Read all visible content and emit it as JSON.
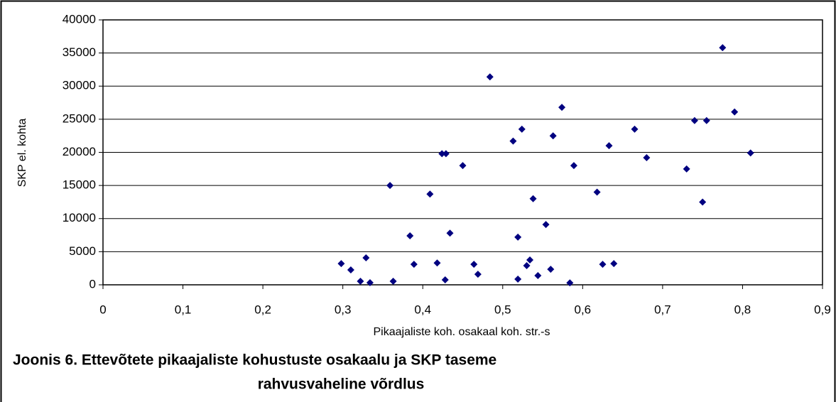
{
  "chart_data": {
    "type": "scatter",
    "x_label": "Pikaajaliste koh. osakaal koh. str.-s",
    "y_label": "SKP el. kohta",
    "caption": [
      "Joonis 6. Ettevõtete pikaajaliste kohustuste osakaalu ja SKP taseme",
      "rahvusvaheline võrdlus"
    ],
    "color": "#000080",
    "grid": true,
    "x": [
      0.298,
      0.31,
      0.322,
      0.329,
      0.334,
      0.359,
      0.363,
      0.384,
      0.389,
      0.409,
      0.418,
      0.424,
      0.428,
      0.429,
      0.434,
      0.45,
      0.464,
      0.469,
      0.484,
      0.513,
      0.519,
      0.519,
      0.524,
      0.53,
      0.534,
      0.538,
      0.544,
      0.554,
      0.56,
      0.563,
      0.574,
      0.584,
      0.589,
      0.618,
      0.625,
      0.633,
      0.639,
      0.665,
      0.68,
      0.73,
      0.74,
      0.75,
      0.755,
      0.775,
      0.79,
      0.81
    ],
    "values": [
      3200,
      2250,
      540,
      4070,
      320,
      15000,
      540,
      7400,
      3100,
      13700,
      3300,
      19800,
      750,
      19800,
      7800,
      18000,
      3100,
      1600,
      31400,
      21700,
      860,
      7200,
      23500,
      2900,
      3750,
      13000,
      1400,
      9100,
      2350,
      22500,
      26800,
      300,
      18000,
      14000,
      3100,
      21000,
      3200,
      23500,
      19200,
      17500,
      24800,
      12500,
      24800,
      35800,
      26100,
      19900
    ],
    "xlim": [
      0,
      0.9
    ],
    "xticks": [
      0,
      {
        "value": 0.1,
        "label": "0,1"
      },
      {
        "value": 0.2,
        "label": "0,2"
      },
      {
        "value": 0.3,
        "label": "0,3"
      },
      {
        "value": 0.4,
        "label": "0,4"
      },
      {
        "value": 0.5,
        "label": "0,5"
      },
      {
        "value": 0.6,
        "label": "0,6"
      },
      {
        "value": 0.7,
        "label": "0,7"
      },
      {
        "value": 0.8,
        "label": "0,8"
      },
      {
        "value": 0.9,
        "label": "0,9"
      }
    ],
    "ylim": [
      0,
      40000
    ],
    "yticks": [
      0,
      5000,
      10000,
      15000,
      20000,
      25000,
      30000,
      35000,
      40000
    ]
  }
}
